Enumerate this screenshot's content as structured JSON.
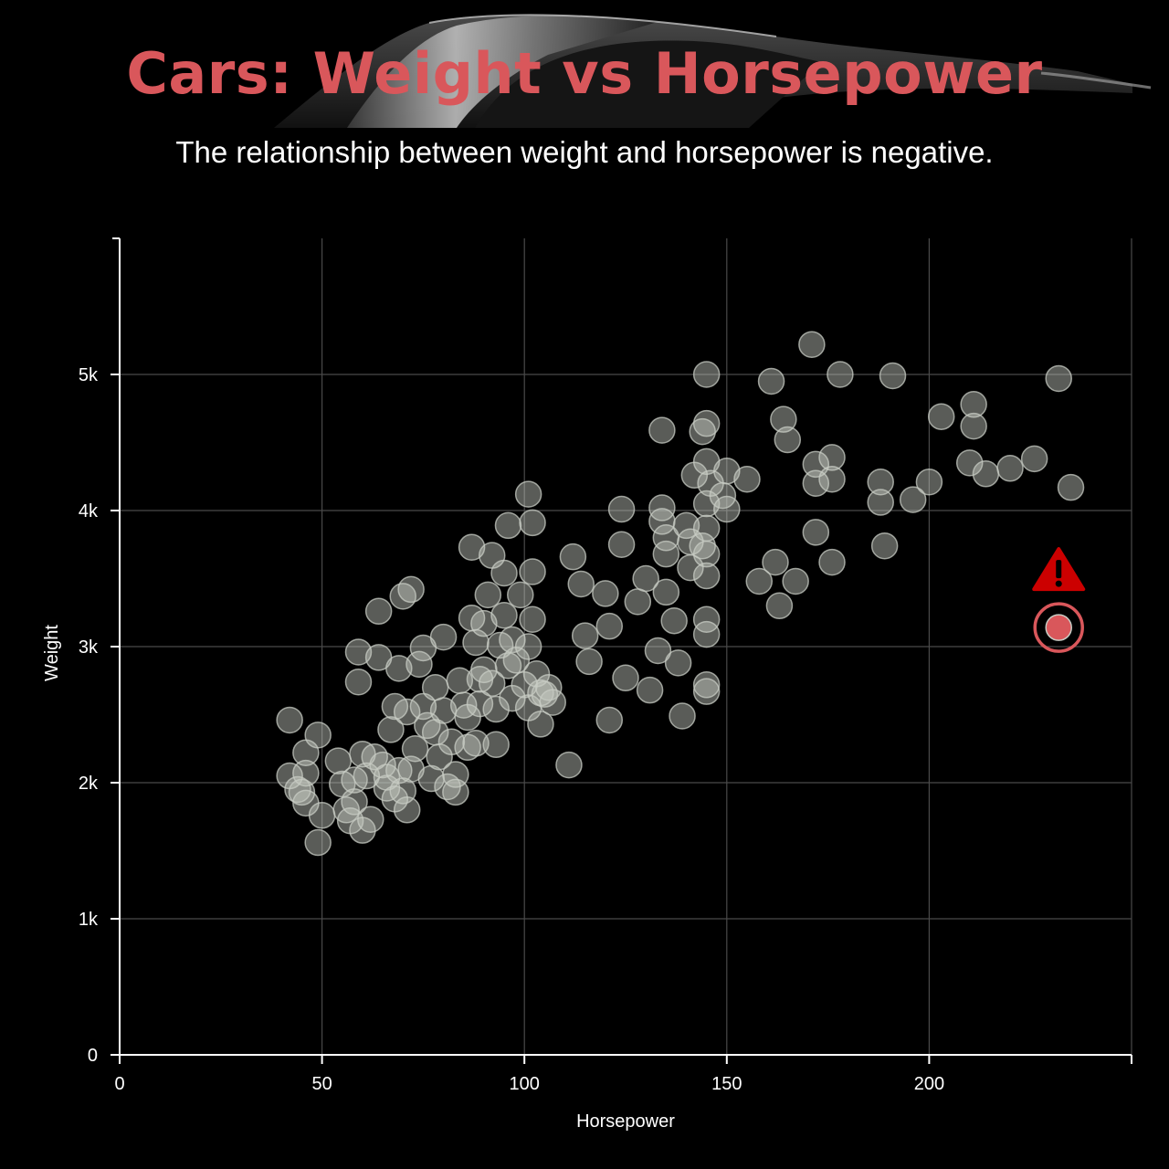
{
  "title": "Cars: Weight vs Horsepower",
  "subtitle": "The relationship between weight and horsepower is negative.",
  "colors": {
    "background": "#000000",
    "title": "#d9575b",
    "point": "#c8ccc4",
    "highlight": "#d9575b",
    "warning": "#cc0000",
    "grid": "#4a4a4a"
  },
  "icons": {
    "warning": "warning-triangle-icon",
    "background": "car-silhouette"
  },
  "chart_data": {
    "type": "scatter",
    "xlabel": "Horsepower",
    "ylabel": "Weight",
    "xlim": [
      0,
      250
    ],
    "ylim": [
      0,
      6000
    ],
    "xticks": [
      0,
      50,
      100,
      150,
      200
    ],
    "xtick_labels": [
      "0",
      "50",
      "100",
      "150",
      "200"
    ],
    "yticks": [
      0,
      1000,
      2000,
      3000,
      4000,
      5000
    ],
    "ytick_labels": [
      "0",
      "1k",
      "2k",
      "3k",
      "4k",
      "5k"
    ],
    "grid": true,
    "legend": "none",
    "highlight": {
      "x": 232,
      "y": 3140,
      "annotation": "warning"
    },
    "points": [
      [
        42,
        2460
      ],
      [
        42,
        2050
      ],
      [
        44,
        1950
      ],
      [
        46,
        2220
      ],
      [
        46,
        2070
      ],
      [
        45,
        1930
      ],
      [
        46,
        1850
      ],
      [
        49,
        2350
      ],
      [
        50,
        1760
      ],
      [
        49,
        1560
      ],
      [
        54,
        2160
      ],
      [
        55,
        1990
      ],
      [
        56,
        1800
      ],
      [
        57,
        1720
      ],
      [
        58,
        1860
      ],
      [
        58,
        2020
      ],
      [
        59,
        2740
      ],
      [
        59,
        2960
      ],
      [
        60,
        2210
      ],
      [
        60,
        1650
      ],
      [
        61,
        2050
      ],
      [
        62,
        1730
      ],
      [
        63,
        2190
      ],
      [
        64,
        2920
      ],
      [
        64,
        3260
      ],
      [
        65,
        2130
      ],
      [
        66,
        1960
      ],
      [
        66,
        2040
      ],
      [
        67,
        2390
      ],
      [
        68,
        2560
      ],
      [
        68,
        1880
      ],
      [
        69,
        2840
      ],
      [
        69,
        2090
      ],
      [
        70,
        3370
      ],
      [
        70,
        1940
      ],
      [
        71,
        2520
      ],
      [
        71,
        1800
      ],
      [
        72,
        2100
      ],
      [
        72,
        3420
      ],
      [
        73,
        2250
      ],
      [
        74,
        2870
      ],
      [
        75,
        2560
      ],
      [
        75,
        2990
      ],
      [
        76,
        2420
      ],
      [
        77,
        2030
      ],
      [
        78,
        2370
      ],
      [
        78,
        2700
      ],
      [
        79,
        2190
      ],
      [
        80,
        3070
      ],
      [
        80,
        2530
      ],
      [
        81,
        1970
      ],
      [
        82,
        2300
      ],
      [
        83,
        2060
      ],
      [
        83,
        1930
      ],
      [
        84,
        2750
      ],
      [
        85,
        2570
      ],
      [
        86,
        2480
      ],
      [
        86,
        2260
      ],
      [
        87,
        3730
      ],
      [
        87,
        3210
      ],
      [
        88,
        3030
      ],
      [
        88,
        2290
      ],
      [
        89,
        2760
      ],
      [
        89,
        2580
      ],
      [
        90,
        3170
      ],
      [
        90,
        2830
      ],
      [
        91,
        3380
      ],
      [
        92,
        3670
      ],
      [
        92,
        2730
      ],
      [
        93,
        2540
      ],
      [
        93,
        2280
      ],
      [
        94,
        3010
      ],
      [
        95,
        3540
      ],
      [
        95,
        3230
      ],
      [
        96,
        2860
      ],
      [
        96,
        3890
      ],
      [
        97,
        2620
      ],
      [
        97,
        3050
      ],
      [
        98,
        2900
      ],
      [
        99,
        3380
      ],
      [
        100,
        2720
      ],
      [
        101,
        3000
      ],
      [
        101,
        2550
      ],
      [
        101,
        4120
      ],
      [
        102,
        3910
      ],
      [
        102,
        3550
      ],
      [
        102,
        3200
      ],
      [
        103,
        2800
      ],
      [
        104,
        2430
      ],
      [
        104,
        2660
      ],
      [
        105,
        2650
      ],
      [
        106,
        2700
      ],
      [
        107,
        2590
      ],
      [
        111,
        2130
      ],
      [
        112,
        3660
      ],
      [
        114,
        3460
      ],
      [
        115,
        3080
      ],
      [
        116,
        2890
      ],
      [
        120,
        3390
      ],
      [
        121,
        3150
      ],
      [
        121,
        2460
      ],
      [
        124,
        4010
      ],
      [
        124,
        3750
      ],
      [
        125,
        2770
      ],
      [
        128,
        3330
      ],
      [
        130,
        3500
      ],
      [
        131,
        2680
      ],
      [
        133,
        2970
      ],
      [
        134,
        4590
      ],
      [
        134,
        4020
      ],
      [
        134,
        3920
      ],
      [
        135,
        3800
      ],
      [
        135,
        3680
      ],
      [
        135,
        3400
      ],
      [
        137,
        3190
      ],
      [
        138,
        2880
      ],
      [
        139,
        2490
      ],
      [
        140,
        3890
      ],
      [
        141,
        3770
      ],
      [
        141,
        3580
      ],
      [
        142,
        4260
      ],
      [
        144,
        3740
      ],
      [
        144,
        4580
      ],
      [
        145,
        5000
      ],
      [
        145,
        4640
      ],
      [
        145,
        4360
      ],
      [
        145,
        4050
      ],
      [
        145,
        3870
      ],
      [
        145,
        3680
      ],
      [
        145,
        3520
      ],
      [
        145,
        3200
      ],
      [
        145,
        3090
      ],
      [
        145,
        2720
      ],
      [
        145,
        2670
      ],
      [
        146,
        4200
      ],
      [
        149,
        4110
      ],
      [
        150,
        4290
      ],
      [
        150,
        4010
      ],
      [
        155,
        4230
      ],
      [
        158,
        3480
      ],
      [
        161,
        4950
      ],
      [
        162,
        3620
      ],
      [
        163,
        3300
      ],
      [
        164,
        4670
      ],
      [
        165,
        4520
      ],
      [
        167,
        3480
      ],
      [
        171,
        5220
      ],
      [
        172,
        4340
      ],
      [
        172,
        4200
      ],
      [
        172,
        3840
      ],
      [
        176,
        4390
      ],
      [
        176,
        3620
      ],
      [
        176,
        4230
      ],
      [
        178,
        5000
      ],
      [
        188,
        4210
      ],
      [
        188,
        4060
      ],
      [
        189,
        3740
      ],
      [
        191,
        4990
      ],
      [
        196,
        4080
      ],
      [
        200,
        4210
      ],
      [
        203,
        4690
      ],
      [
        210,
        4350
      ],
      [
        211,
        4780
      ],
      [
        211,
        4620
      ],
      [
        214,
        4270
      ],
      [
        220,
        4310
      ],
      [
        226,
        4380
      ],
      [
        232,
        4970
      ],
      [
        235,
        4170
      ],
      [
        232,
        3140
      ]
    ]
  }
}
